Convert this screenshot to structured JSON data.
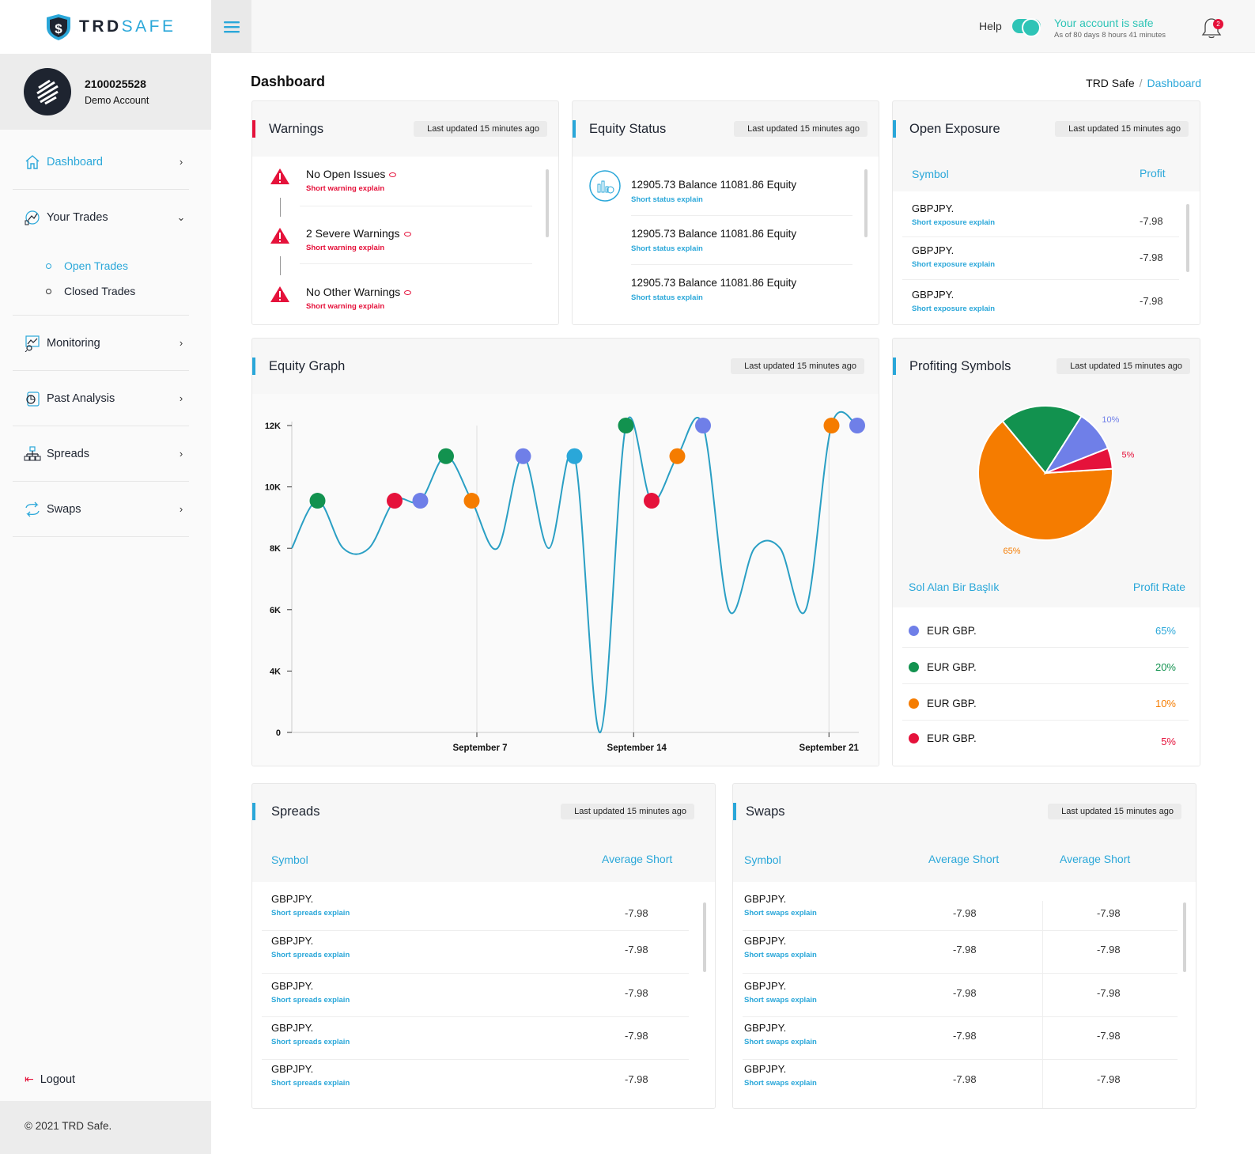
{
  "brand": {
    "name_a": "TRD",
    "name_b": "SAFE"
  },
  "account": {
    "number": "2100025528",
    "type": "Demo Account"
  },
  "nav": {
    "dashboard": "Dashboard",
    "your_trades": "Your Trades",
    "open_trades": "Open Trades",
    "closed_trades": "Closed Trades",
    "monitoring": "Monitoring",
    "past_analysis": "Past Analysis",
    "spreads": "Spreads",
    "swaps": "Swaps"
  },
  "logout": "Logout",
  "footer": "© 2021 TRD Safe.",
  "topbar": {
    "help": "Help",
    "safe_title": "Your account is safe",
    "safe_sub": "As of 80 days 8 hours 41 minutes",
    "notifications": "2"
  },
  "page": {
    "title": "Dashboard",
    "crumb_root": "TRD Safe",
    "crumb_sep": "/",
    "crumb_current": "Dashboard"
  },
  "updated": "Last updated 15 minutes ago",
  "warnings": {
    "title": "Warnings",
    "items": [
      {
        "title": "No Open Issues",
        "sub": "Short warning explain"
      },
      {
        "title": "2 Severe Warnings",
        "sub": "Short warning explain"
      },
      {
        "title": "No Other Warnings",
        "sub": "Short warning explain"
      }
    ]
  },
  "equity_status": {
    "title": "Equity Status",
    "items": [
      {
        "title": "12905.73 Balance 11081.86 Equity",
        "sub": "Short status explain"
      },
      {
        "title": "12905.73 Balance 11081.86 Equity",
        "sub": "Short status explain"
      },
      {
        "title": "12905.73 Balance 11081.86 Equity",
        "sub": "Short status explain"
      }
    ]
  },
  "open_exposure": {
    "title": "Open Exposure",
    "col_symbol": "Symbol",
    "col_profit": "Profit",
    "rows": [
      {
        "symbol": "GBPJPY.",
        "sub": "Short exposure explain",
        "profit": "-7.98"
      },
      {
        "symbol": "GBPJPY.",
        "sub": "Short exposure explain",
        "profit": "-7.98"
      },
      {
        "symbol": "GBPJPY.",
        "sub": "Short exposure explain",
        "profit": "-7.98"
      }
    ]
  },
  "equity_graph": {
    "title": "Equity Graph"
  },
  "profiting": {
    "title": "Profiting Symbols",
    "col_left": "Sol Alan Bir Başlık",
    "col_right": "Profit Rate",
    "rows": [
      {
        "name": "EUR GBP.",
        "rate": "65%",
        "color": "#6f7fe8"
      },
      {
        "name": "EUR GBP.",
        "rate": "20%",
        "color": "#12924f"
      },
      {
        "name": "EUR GBP.",
        "rate": "10%",
        "color": "#f57c00"
      },
      {
        "name": "EUR GBP.",
        "rate": "5%",
        "color": "#e5123b"
      }
    ]
  },
  "spreads": {
    "title": "Spreads",
    "col_symbol": "Symbol",
    "col_avg": "Average Short",
    "rows": [
      {
        "symbol": "GBPJPY.",
        "sub": "Short spreads explain",
        "avg": "-7.98"
      },
      {
        "symbol": "GBPJPY.",
        "sub": "Short spreads explain",
        "avg": "-7.98"
      },
      {
        "symbol": "GBPJPY.",
        "sub": "Short spreads explain",
        "avg": "-7.98"
      },
      {
        "symbol": "GBPJPY.",
        "sub": "Short spreads explain",
        "avg": "-7.98"
      },
      {
        "symbol": "GBPJPY.",
        "sub": "Short spreads explain",
        "avg": "-7.98"
      }
    ]
  },
  "swaps": {
    "title": "Swaps",
    "col_symbol": "Symbol",
    "col_avg1": "Average Short",
    "col_avg2": "Average Short",
    "rows": [
      {
        "symbol": "GBPJPY.",
        "sub": "Short swaps explain",
        "a": "-7.98",
        "b": "-7.98"
      },
      {
        "symbol": "GBPJPY.",
        "sub": "Short swaps explain",
        "a": "-7.98",
        "b": "-7.98"
      },
      {
        "symbol": "GBPJPY.",
        "sub": "Short swaps explain",
        "a": "-7.98",
        "b": "-7.98"
      },
      {
        "symbol": "GBPJPY.",
        "sub": "Short swaps explain",
        "a": "-7.98",
        "b": "-7.98"
      },
      {
        "symbol": "GBPJPY.",
        "sub": "Short swaps explain",
        "a": "-7.98",
        "b": "-7.98"
      }
    ]
  },
  "colors": {
    "accent": "#2aa7d9",
    "safe": "#2ec4b6",
    "danger": "#e5123b",
    "green": "#12924f",
    "orange": "#f57c00",
    "purple": "#6f7fe8",
    "line": "#2a9fc4"
  },
  "chart_data": [
    {
      "type": "line",
      "y_ticks": [
        "0",
        "4K",
        "6K",
        "8K",
        "10K",
        "12K"
      ],
      "x_ticks": [
        "September 7",
        "September 14",
        "September 21"
      ],
      "note_axis": "y axis is non-linear: ticks 0,4K,6K,8K,10K,12K are evenly spaced",
      "series": [
        {
          "values": [
            8000,
            9550,
            8000,
            8000,
            9550,
            9550,
            11000,
            9550,
            8000,
            11000,
            8000,
            11000,
            0,
            12000,
            9550,
            11000,
            12000,
            6000,
            8000,
            8000,
            6000,
            12000,
            12000
          ]
        }
      ],
      "markers": [
        {
          "index": 1,
          "color": "green"
        },
        {
          "index": 4,
          "color": "red"
        },
        {
          "index": 5,
          "color": "purple"
        },
        {
          "index": 6,
          "color": "green"
        },
        {
          "index": 7,
          "color": "orange"
        },
        {
          "index": 9,
          "color": "purple"
        },
        {
          "index": 11,
          "color": "blue"
        },
        {
          "index": 13,
          "color": "green"
        },
        {
          "index": 14,
          "color": "red"
        },
        {
          "index": 15,
          "color": "orange"
        },
        {
          "index": 16,
          "color": "purple"
        },
        {
          "index": 21,
          "color": "orange"
        },
        {
          "index": 22,
          "color": "purple"
        }
      ],
      "grid": "vertical lines at x ticks"
    },
    {
      "type": "pie",
      "slices": [
        {
          "label": "65%",
          "value": 65,
          "color": "#f57c00"
        },
        {
          "label": "20%",
          "value": 20,
          "color": "#12924f"
        },
        {
          "label": "10%",
          "value": 10,
          "color": "#6f7fe8"
        },
        {
          "label": "5%",
          "value": 5,
          "color": "#e5123b"
        }
      ]
    }
  ]
}
